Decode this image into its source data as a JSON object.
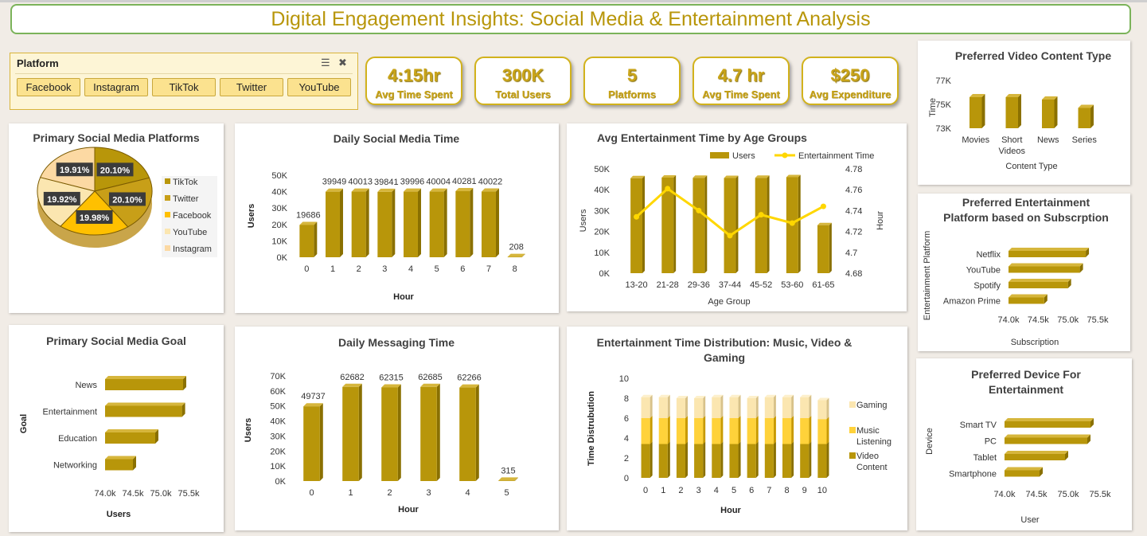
{
  "title": "Digital Engagement Insights: Social Media & Entertainment Analysis",
  "colors": {
    "gold": "#b8960a",
    "gold_dark": "#8a7000",
    "gold_top": "#d6b63c",
    "yellow": "#ffd23a",
    "line": "#ffd700",
    "light": "#fbe6b0"
  },
  "slicer": {
    "title": "Platform",
    "items": [
      "Facebook",
      "Instagram",
      "TikTok",
      "Twitter",
      "YouTube"
    ],
    "icons": [
      "multi-select-icon",
      "clear-filter-icon"
    ]
  },
  "kpis": [
    {
      "value": "4:15hr",
      "label": "Avg Time Spent"
    },
    {
      "value": "300K",
      "label": "Total Users"
    },
    {
      "value": "5",
      "label": "Platforms"
    },
    {
      "value": "4.7 hr",
      "label": "Avg Time Spent"
    },
    {
      "value": "$250",
      "label": "Avg Expenditure"
    }
  ],
  "chart_data": [
    {
      "id": "pie",
      "type": "pie",
      "title": "Primary Social Media Platforms",
      "labels": [
        "TikTok",
        "Twitter",
        "Facebook",
        "YouTube",
        "Instagram"
      ],
      "values": [
        20.1,
        20.1,
        19.98,
        19.92,
        19.91
      ],
      "data_labels": [
        "20.10%",
        "20.10%",
        "19.98%",
        "19.92%",
        "19.91%"
      ],
      "colors": [
        "#b8960a",
        "#c89f18",
        "#ffc000",
        "#fbe6b0",
        "#fcd9a3"
      ]
    },
    {
      "id": "daily-social",
      "type": "bar",
      "title": "Daily Social Media Time",
      "categories": [
        "0",
        "1",
        "2",
        "3",
        "4",
        "5",
        "6",
        "7",
        "8"
      ],
      "values": [
        19686,
        39949,
        40013,
        39841,
        39996,
        40004,
        40281,
        40022,
        208
      ],
      "data_labels": [
        "19686",
        "39949",
        "40013",
        "39841",
        "39996",
        "40004",
        "40281",
        "40022",
        "208"
      ],
      "ylim": [
        0,
        50000
      ],
      "yticks": [
        "0K",
        "10K",
        "20K",
        "30K",
        "40K",
        "50K"
      ],
      "xlabel": "Hour",
      "ylabel": "Users"
    },
    {
      "id": "age-groups",
      "type": "bar",
      "title": "Avg Entertainment Time by Age Groups",
      "categories": [
        "13-20",
        "21-28",
        "29-36",
        "37-44",
        "45-52",
        "53-60",
        "61-65"
      ],
      "series": [
        {
          "name": "Users",
          "values": [
            45500,
            45800,
            45700,
            45600,
            45700,
            46000,
            23000
          ]
        },
        {
          "name": "Entertainment Time",
          "values": [
            4.734,
            4.761,
            4.74,
            4.716,
            4.736,
            4.728,
            4.744
          ]
        }
      ],
      "ylim": [
        0,
        50000
      ],
      "yticks": [
        "0K",
        "10K",
        "20K",
        "30K",
        "40K",
        "50K"
      ],
      "y2lim": [
        4.68,
        4.78
      ],
      "y2ticks": [
        "4.68",
        "4.7",
        "4.72",
        "4.74",
        "4.76",
        "4.78"
      ],
      "xlabel": "Age Group",
      "ylabel": "Users",
      "y2label": "Hour",
      "legend": "top"
    },
    {
      "id": "video-content",
      "type": "bar",
      "title": "Preferred Video Content Type",
      "categories": [
        "Movies",
        "Short Videos",
        "News",
        "Series"
      ],
      "values": [
        75600,
        75600,
        75400,
        74700
      ],
      "ylim": [
        73000,
        77000
      ],
      "yticks": [
        "73K",
        "75K",
        "77K"
      ],
      "xlabel": "Content Type",
      "ylabel": "Time"
    },
    {
      "id": "subscription",
      "type": "bar",
      "title": "Preferred Entertainment Platform based on Subscrption",
      "categories": [
        "Netflix",
        "YouTube",
        "Spotify",
        "Amazon Prime"
      ],
      "values": [
        75300,
        75200,
        75000,
        74600
      ],
      "xlim": [
        74000,
        75500
      ],
      "xticks": [
        "74.0k",
        "74.5k",
        "75.0k",
        "75.5k"
      ],
      "xlabel": "Subscription",
      "ylabel": "Entertainment Platform"
    },
    {
      "id": "goal",
      "type": "bar",
      "title": "Primary Social Media Goal",
      "categories": [
        "News",
        "Entertainment",
        "Education",
        "Networking"
      ],
      "values": [
        75400,
        75380,
        74900,
        74500
      ],
      "xlim": [
        74000,
        75500
      ],
      "xticks": [
        "74.0k",
        "74.5k",
        "75.0k",
        "75.5k"
      ],
      "xlabel": "Users",
      "ylabel": "Goal"
    },
    {
      "id": "messaging",
      "type": "bar",
      "title": "Daily Messaging Time",
      "categories": [
        "0",
        "1",
        "2",
        "3",
        "4",
        "5"
      ],
      "values": [
        49737,
        62682,
        62315,
        62685,
        62266,
        315
      ],
      "data_labels": [
        "49737",
        "62682",
        "62315",
        "62685",
        "62266",
        "315"
      ],
      "ylim": [
        0,
        70000
      ],
      "yticks": [
        "0K",
        "10K",
        "20K",
        "30K",
        "40K",
        "50K",
        "60K",
        "70K"
      ],
      "xlabel": "Hour",
      "ylabel": "Users"
    },
    {
      "id": "distribution",
      "type": "bar",
      "title": "Entertainment Time Distribution: Music, Video & Gaming",
      "categories": [
        "0",
        "1",
        "2",
        "3",
        "4",
        "5",
        "6",
        "7",
        "8",
        "9",
        "10"
      ],
      "series": [
        {
          "name": "Video Content",
          "values": [
            3.4,
            3.4,
            3.4,
            3.4,
            3.4,
            3.4,
            3.4,
            3.4,
            3.4,
            3.4,
            3.4
          ]
        },
        {
          "name": "Music Listening",
          "values": [
            2.6,
            2.6,
            2.6,
            2.6,
            2.6,
            2.6,
            2.6,
            2.6,
            2.6,
            2.6,
            2.5
          ]
        },
        {
          "name": "Gaming",
          "values": [
            2.1,
            2.1,
            2.0,
            2.0,
            2.1,
            2.1,
            2.0,
            2.1,
            2.1,
            2.1,
            1.9
          ]
        }
      ],
      "ylim": [
        0,
        10
      ],
      "yticks": [
        "0",
        "2",
        "4",
        "6",
        "8",
        "10"
      ],
      "xlabel": "Hour",
      "ylabel": "Time Distrubution",
      "legend": "right"
    },
    {
      "id": "device",
      "type": "bar",
      "title": "Preferred Device For Entertainment",
      "categories": [
        "Smart TV",
        "PC",
        "Tablet",
        "Smartphone"
      ],
      "values": [
        75350,
        75300,
        74950,
        74550
      ],
      "xlim": [
        74000,
        75500
      ],
      "xticks": [
        "74.0k",
        "74.5k",
        "75.0k",
        "75.5k"
      ],
      "xlabel": "User",
      "ylabel": "Device"
    }
  ]
}
